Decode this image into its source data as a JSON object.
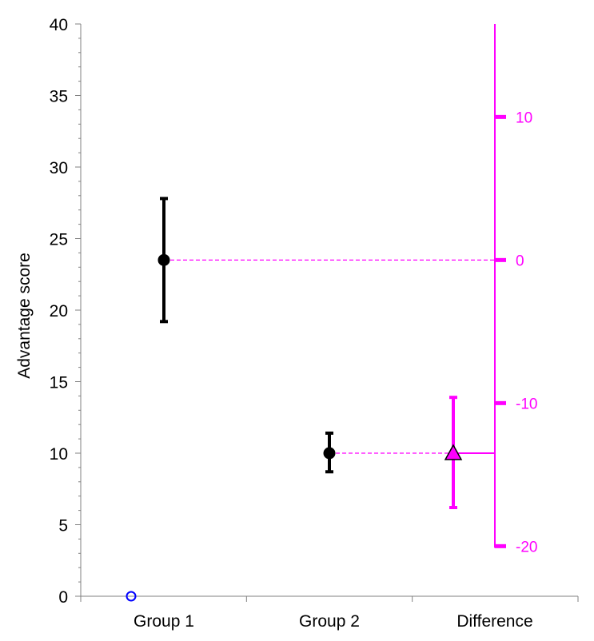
{
  "chart_data": {
    "type": "scatter",
    "title": "",
    "ylabel": "Advantage score",
    "ylim": [
      0,
      40
    ],
    "y_ticks": [
      0,
      5,
      10,
      15,
      20,
      25,
      30,
      35,
      40
    ],
    "y_tick_labels": [
      "0",
      "5",
      "10",
      "15",
      "20",
      "25",
      "30",
      "35",
      "40"
    ],
    "categories": [
      "Group 1",
      "Group 2",
      "Difference"
    ],
    "groups": [
      {
        "category": "Group 1",
        "mean": 23.5,
        "ci_low": 19.2,
        "ci_high": 27.8,
        "marker": "circle",
        "color": "#000000"
      },
      {
        "category": "Group 2",
        "mean": 10.0,
        "ci_low": 8.7,
        "ci_high": 11.4,
        "marker": "circle",
        "color": "#000000"
      }
    ],
    "difference": {
      "category": "Difference",
      "mean": -13.5,
      "ci_low": -17.3,
      "ci_high": -9.6,
      "marker": "triangle",
      "color": "#ff00ff",
      "axis_ticks": [
        10,
        0,
        -10,
        -20
      ],
      "axis_tick_labels": [
        "10",
        "0",
        "-10",
        "-20"
      ],
      "axis_zero_at_left_scale": 23.5
    },
    "origin_marker": {
      "category": "Group 1",
      "value": 0,
      "marker": "open-circle",
      "color": "#0000ff"
    },
    "colors": {
      "axis": "#808080",
      "data": "#000000",
      "difference": "#ff00ff",
      "origin_marker": "#0000ff"
    },
    "grid": false,
    "legend": "none"
  }
}
